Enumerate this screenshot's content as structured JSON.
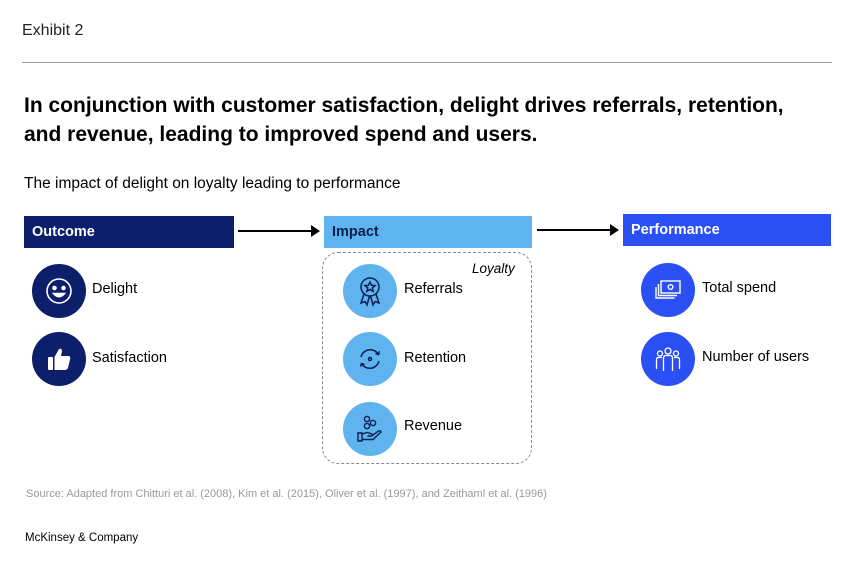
{
  "exhibit": "Exhibit 2",
  "headline": "In conjunction with customer satisfaction, delight drives referrals, retention, and revenue, leading to improved spend and users.",
  "subtitle": "The impact of delight on loyalty leading to performance",
  "columns": {
    "outcome": {
      "title": "Outcome",
      "items": [
        {
          "label": "Delight",
          "icon": "smiley-face-icon"
        },
        {
          "label": "Satisfaction",
          "icon": "thumbs-up-icon"
        }
      ]
    },
    "impact": {
      "title": "Impact",
      "group_label": "Loyalty",
      "items": [
        {
          "label": "Referrals",
          "icon": "award-ribbon-icon"
        },
        {
          "label": "Retention",
          "icon": "cycle-arrows-icon"
        },
        {
          "label": "Revenue",
          "icon": "coins-in-hand-icon"
        }
      ]
    },
    "performance": {
      "title": "Performance",
      "items": [
        {
          "label": "Total spend",
          "icon": "cash-stack-icon"
        },
        {
          "label": "Number of users",
          "icon": "group-of-people-icon"
        }
      ]
    }
  },
  "source": "Source: Adapted from Chitturi et al. (2008), Kim et al. (2015), Oliver et al. (1997), and Zeithaml et al. (1996)",
  "brand": "McKinsey & Company",
  "colors": {
    "navy": "#0b1f6b",
    "light_blue": "#5fb3ef",
    "bright_blue": "#2a4ff2"
  }
}
